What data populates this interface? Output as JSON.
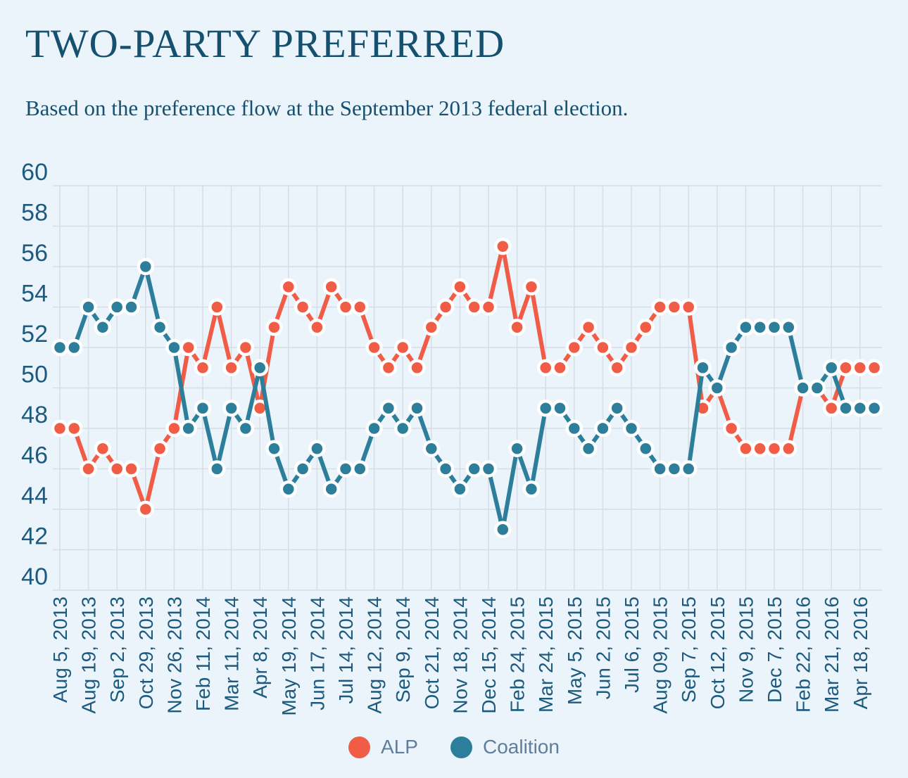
{
  "title": "TWO-PARTY PREFERRED",
  "subtitle": "Based on the preference flow at the September 2013 federal election.",
  "chart_data": {
    "type": "line",
    "title": "TWO-PARTY PREFERRED",
    "subtitle": "Based on the preference flow at the September 2013 federal election.",
    "xlabel": "",
    "ylabel": "",
    "ylim": [
      40,
      60
    ],
    "y_ticks": [
      60,
      58,
      56,
      54,
      52,
      50,
      48,
      46,
      44,
      42,
      40
    ],
    "grid": true,
    "legend_position": "bottom",
    "n_points": 58,
    "x_ticks_every_n_points": 2,
    "x_tick_labels": [
      "Aug 5, 2013",
      "Aug 19, 2013",
      "Sep 2, 2013",
      "Oct 29, 2013",
      "Nov 26, 2013",
      "Feb 11, 2014",
      "Mar 11, 2014",
      "Apr 8, 2014",
      "May 19, 2014",
      "Jun 17, 2014",
      "Jul 14, 2014",
      "Aug 12, 2014",
      "Sep 9, 2014",
      "Oct 21, 2014",
      "Nov 18, 2014",
      "Dec 15, 2014",
      "Feb 24, 2015",
      "Mar 24, 2015",
      "May 5, 2015",
      "Jun 2, 2015",
      "Jul 6, 2015",
      "Aug 09, 2015",
      "Sep 7, 2015",
      "Oct 12, 2015",
      "Nov 9, 2015",
      "Dec 7, 2015",
      "Feb 22, 2016",
      "Mar 21, 2016",
      "Apr 18, 2016"
    ],
    "series": [
      {
        "name": "ALP",
        "color": "#F15C47",
        "values": [
          48,
          48,
          46,
          47,
          46,
          46,
          44,
          47,
          48,
          52,
          51,
          54,
          51,
          52,
          49,
          53,
          55,
          54,
          53,
          55,
          54,
          54,
          52,
          51,
          52,
          51,
          53,
          54,
          55,
          54,
          54,
          57,
          53,
          55,
          51,
          51,
          52,
          53,
          52,
          51,
          52,
          53,
          54,
          54,
          54,
          49,
          50,
          48,
          47,
          47,
          47,
          47,
          50,
          50,
          49,
          51,
          51,
          51
        ]
      },
      {
        "name": "Coalition",
        "color": "#2C7E9A",
        "values": [
          52,
          52,
          54,
          53,
          54,
          54,
          56,
          53,
          52,
          48,
          49,
          46,
          49,
          48,
          51,
          47,
          45,
          46,
          47,
          45,
          46,
          46,
          48,
          49,
          48,
          49,
          47,
          46,
          45,
          46,
          46,
          43,
          47,
          45,
          49,
          49,
          48,
          47,
          48,
          49,
          48,
          47,
          46,
          46,
          46,
          51,
          50,
          52,
          53,
          53,
          53,
          53,
          50,
          50,
          51,
          49,
          49,
          49
        ]
      }
    ]
  },
  "colors": {
    "background": "#EBF3FB",
    "grid": "#D7DDE5",
    "title_text": "#15506F",
    "axis_label_text": "#1D5B7E",
    "legend_text": "#5F7E9A",
    "point_halo": "#FFFFFF"
  }
}
